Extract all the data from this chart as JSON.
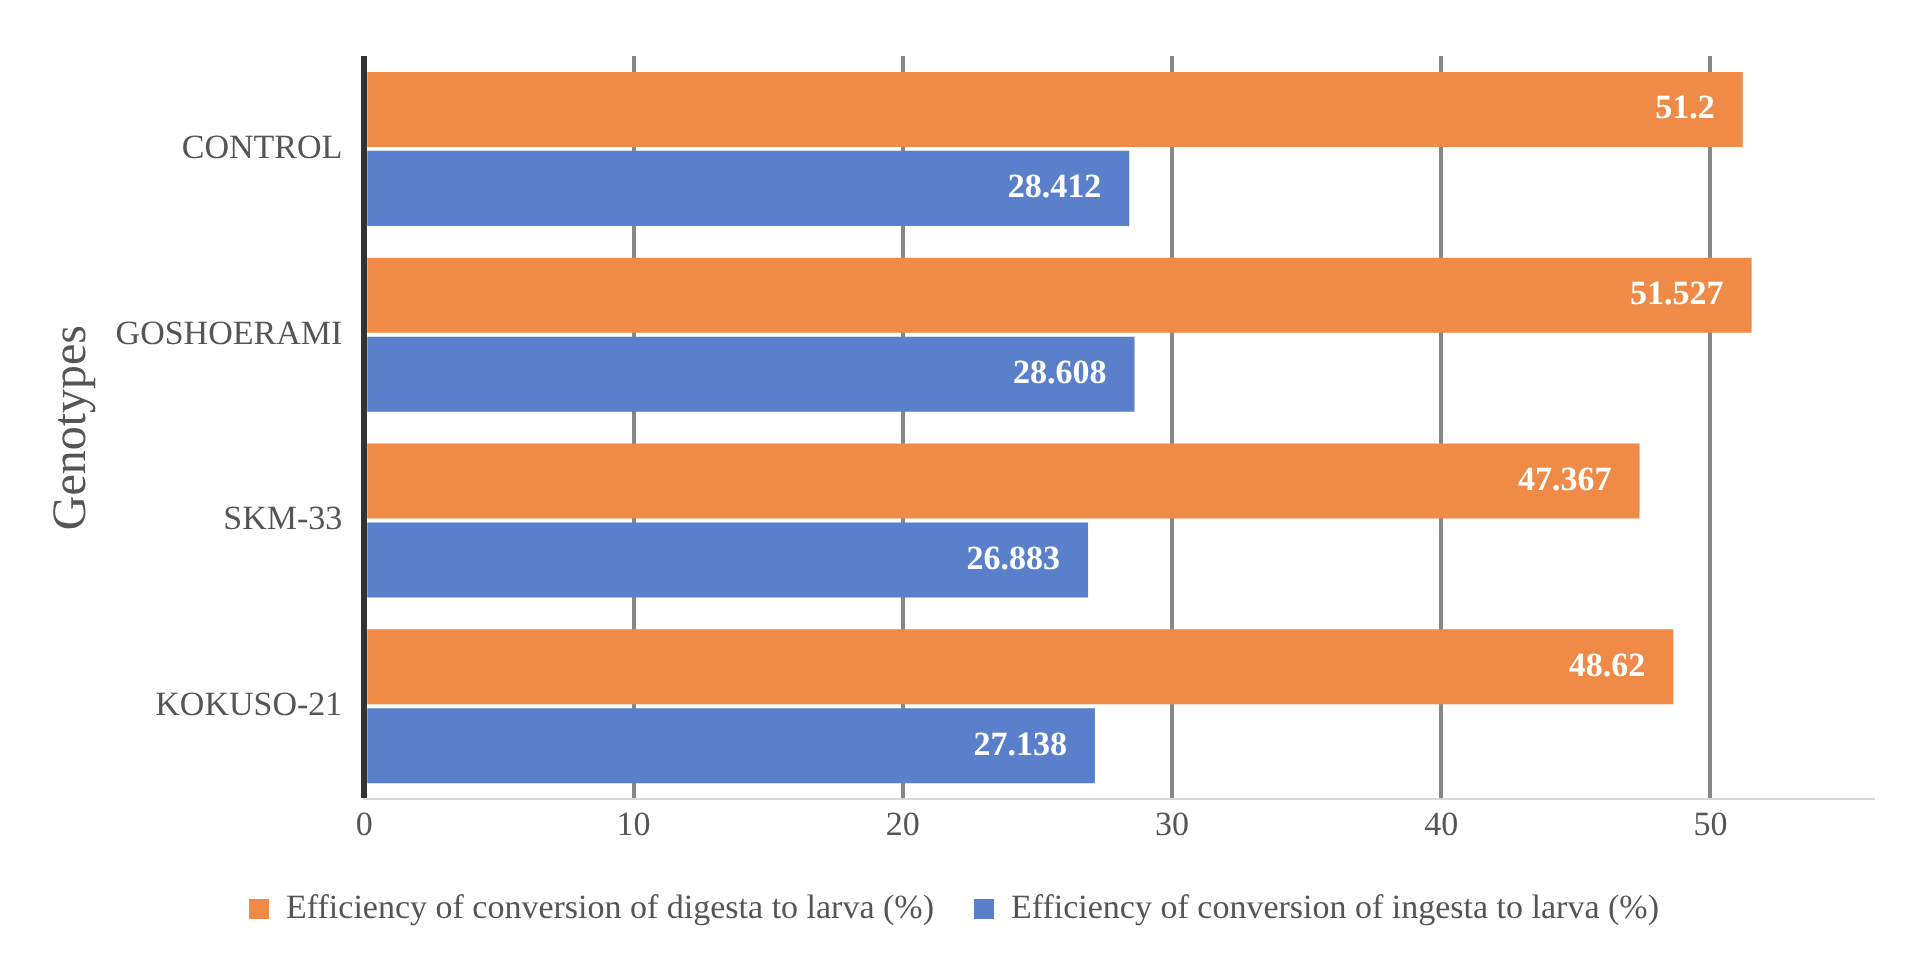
{
  "chart_data": {
    "type": "bar",
    "orientation": "horizontal",
    "ylabel": "Genotypes",
    "categories": [
      "CONTROL",
      "GOSHOERAMI",
      "SKM-33",
      "KOKUSO-21"
    ],
    "series": [
      {
        "name": "Efficiency of conversion of digesta to larva (%)",
        "color": "#ef8a47",
        "values": [
          51.2,
          51.527,
          47.367,
          48.62
        ]
      },
      {
        "name": "Efficiency of conversion of ingesta to larva (%)",
        "color": "#5a7fcb",
        "values": [
          28.412,
          28.608,
          26.883,
          27.138
        ]
      }
    ],
    "xlim": [
      0,
      56
    ],
    "xticks": [
      0,
      10,
      20,
      30,
      40,
      50
    ],
    "grid": "x",
    "legend": "bottom",
    "data_labels": true
  }
}
